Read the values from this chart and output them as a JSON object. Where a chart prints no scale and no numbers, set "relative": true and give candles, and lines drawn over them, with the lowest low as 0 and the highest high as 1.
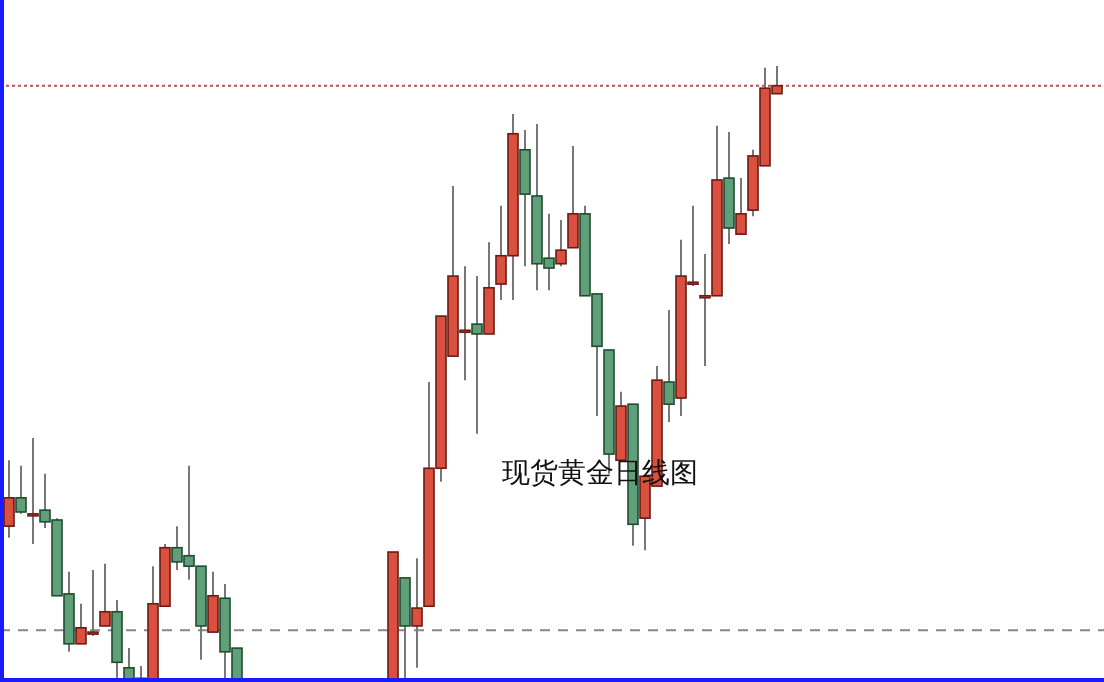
{
  "chart_data": {
    "type": "candlestick",
    "title": "现货黄金日线图",
    "relative": true,
    "categories": [
      null,
      null,
      null,
      null,
      null,
      null,
      null,
      null,
      null,
      null,
      null,
      null,
      null,
      null,
      null,
      null,
      null,
      null,
      null,
      null,
      null,
      null,
      null,
      null,
      null,
      null,
      null,
      null,
      null,
      null,
      null,
      null,
      null,
      null,
      null,
      null,
      null,
      null,
      null,
      null,
      null,
      null,
      null,
      null,
      null,
      null,
      null,
      null,
      null,
      null,
      null,
      null,
      null,
      null,
      null,
      null,
      null,
      null,
      null,
      null,
      null,
      null,
      null,
      null,
      null
    ],
    "ohlc": [
      [
        0.253,
        0.36,
        0.234,
        0.299
      ],
      [
        0.299,
        0.351,
        0.273,
        0.276
      ],
      [
        0.273,
        0.396,
        0.224,
        0.273
      ],
      [
        0.279,
        0.338,
        0.25,
        0.26
      ],
      [
        0.263,
        0.266,
        0.14,
        0.14
      ],
      [
        0.143,
        0.179,
        0.049,
        0.062
      ],
      [
        0.062,
        0.127,
        0.062,
        0.088
      ],
      [
        0.081,
        0.182,
        0.075,
        0.081
      ],
      [
        0.091,
        0.192,
        0.091,
        0.114
      ],
      [
        0.114,
        0.133,
        0,
        0.032
      ],
      [
        0.023,
        0.055,
        0,
        0.003
      ],
      [
        0,
        0.026,
        0,
        0.006
      ],
      [
        0,
        0.188,
        0,
        0.127
      ],
      [
        0.123,
        0.224,
        0.123,
        0.218
      ],
      [
        0.218,
        0.253,
        0.182,
        0.195
      ],
      [
        0.205,
        0.351,
        0.166,
        0.188
      ],
      [
        0.188,
        0.188,
        0.036,
        0.091
      ],
      [
        0.081,
        0.179,
        0.081,
        0.14
      ],
      [
        0.136,
        0.159,
        0,
        0.049
      ],
      [
        0.055,
        0.055,
        0,
        0
      ],
      null,
      null,
      null,
      null,
      null,
      null,
      null,
      null,
      null,
      null,
      null,
      null,
      [
        0,
        0.211,
        0,
        0.211
      ],
      [
        0.169,
        0.169,
        0,
        0.091
      ],
      [
        0.091,
        0.201,
        0.023,
        0.12
      ],
      [
        0.123,
        0.487,
        0.123,
        0.347
      ],
      [
        0.347,
        0.594,
        0.325,
        0.594
      ],
      [
        0.529,
        0.805,
        0.529,
        0.659
      ],
      [
        0.571,
        0.675,
        0.49,
        0.571
      ],
      [
        0.581,
        0.659,
        0.403,
        0.565
      ],
      [
        0.565,
        0.714,
        0.565,
        0.64
      ],
      [
        0.646,
        0.773,
        0.62,
        0.692
      ],
      [
        0.692,
        0.922,
        0.62,
        0.89
      ],
      [
        0.864,
        0.896,
        0.675,
        0.792
      ],
      [
        0.789,
        0.906,
        0.636,
        0.679
      ],
      [
        0.688,
        0.76,
        0.636,
        0.672
      ],
      [
        0.679,
        0.75,
        0.675,
        0.701
      ],
      [
        0.705,
        0.87,
        0.705,
        0.76
      ],
      [
        0.76,
        0.773,
        0.627,
        0.627
      ],
      [
        0.63,
        0.63,
        0.432,
        0.545
      ],
      [
        0.539,
        0.539,
        0.338,
        0.37
      ],
      [
        0.36,
        0.471,
        0.36,
        0.448
      ],
      [
        0.451,
        0.451,
        0.221,
        0.256
      ],
      [
        0.266,
        0.334,
        0.214,
        0.334
      ],
      [
        0.318,
        0.513,
        0.318,
        0.49
      ],
      [
        0.487,
        0.604,
        0.422,
        0.451
      ],
      [
        0.461,
        0.718,
        0.432,
        0.659
      ],
      [
        0.649,
        0.773,
        0.643,
        0.649
      ],
      [
        0.627,
        0.695,
        0.513,
        0.627
      ],
      [
        0.627,
        0.903,
        0.627,
        0.815
      ],
      [
        0.818,
        0.893,
        0.711,
        0.737
      ],
      [
        0.727,
        0.818,
        0.727,
        0.76
      ],
      [
        0.766,
        0.864,
        0.756,
        0.854
      ],
      [
        0.838,
        0.997,
        0.838,
        0.964
      ],
      [
        0.955,
        1.0,
        0.955,
        0.968
      ]
    ],
    "ref_lines": [
      {
        "axis": "y",
        "value": 0.968,
        "color": "#c0504d",
        "line_style": "dotted"
      },
      {
        "axis": "y",
        "value": 0.084,
        "color": "#888888",
        "line_style": "dashed"
      }
    ]
  }
}
